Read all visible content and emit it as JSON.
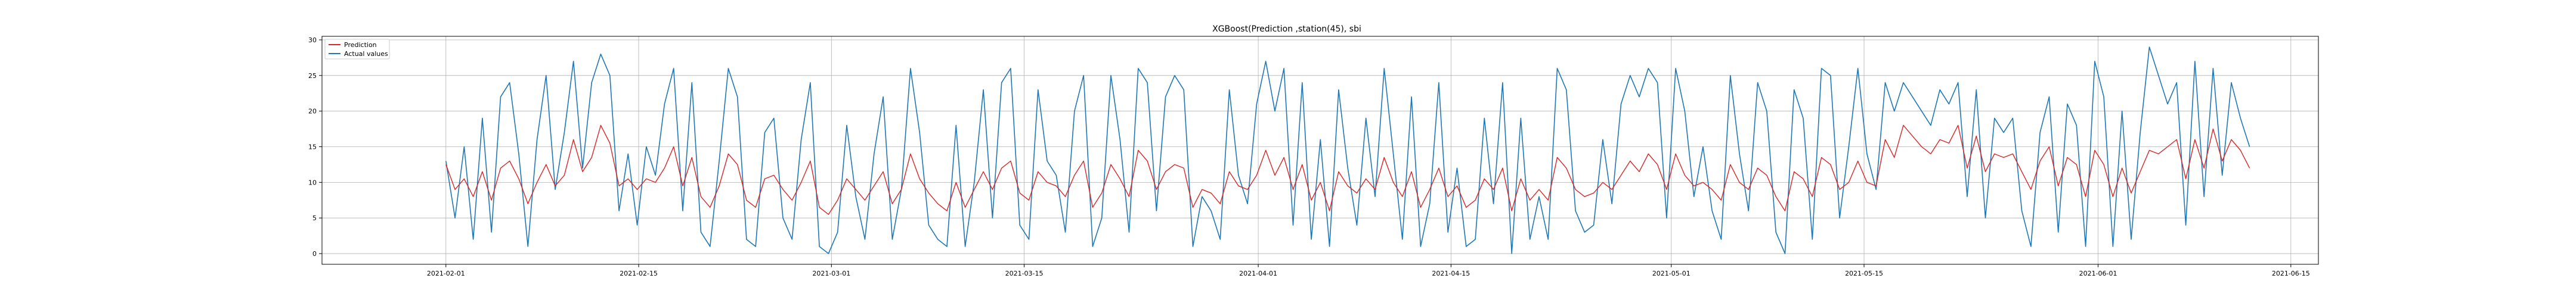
{
  "chart_data": {
    "type": "line",
    "title": "XGBoost(Prediction ,station(45), sbi",
    "xlabel": "",
    "ylabel": "",
    "x_start": "2021-02-01",
    "x_end": "2021-06-12",
    "xlim": [
      "2021-01-23",
      "2021-06-17"
    ],
    "ylim": [
      -1.5,
      30.5
    ],
    "x_ticks": [
      "2021-02-01",
      "2021-02-15",
      "2021-03-01",
      "2021-03-15",
      "2021-04-01",
      "2021-04-15",
      "2021-05-01",
      "2021-05-15",
      "2021-06-01",
      "2021-06-15"
    ],
    "y_ticks": [
      0,
      5,
      10,
      15,
      20,
      25,
      30
    ],
    "grid": true,
    "legend_placement": "top-left",
    "colors": {
      "Prediction": "#d62728",
      "Actual values": "#1f77b4"
    },
    "series": [
      {
        "name": "Prediction",
        "values": [
          12.5,
          9.0,
          10.5,
          8.0,
          11.5,
          7.5,
          12.0,
          13.0,
          10.5,
          7.0,
          10.0,
          12.5,
          9.5,
          11.0,
          16.0,
          11.5,
          13.5,
          18.0,
          15.5,
          9.5,
          10.5,
          9.0,
          10.5,
          10.0,
          12.0,
          15.0,
          9.5,
          13.5,
          8.0,
          6.5,
          9.5,
          14.0,
          12.5,
          7.5,
          6.5,
          10.5,
          11.0,
          9.0,
          7.5,
          10.0,
          13.0,
          6.5,
          5.5,
          7.5,
          10.5,
          9.0,
          7.5,
          9.5,
          11.5,
          7.0,
          9.0,
          14.0,
          10.5,
          8.5,
          7.0,
          6.0,
          10.0,
          6.5,
          9.0,
          11.5,
          9.0,
          12.0,
          13.0,
          8.5,
          7.5,
          11.5,
          10.0,
          9.5,
          8.0,
          11.0,
          13.0,
          6.5,
          8.5,
          12.5,
          10.5,
          8.0,
          14.5,
          13.0,
          9.0,
          11.5,
          12.5,
          12.0,
          6.5,
          9.0,
          8.5,
          7.0,
          11.5,
          9.5,
          9.0,
          11.0,
          14.5,
          11.0,
          13.5,
          9.0,
          12.5,
          7.5,
          10.0,
          6.0,
          11.5,
          9.5,
          8.5,
          10.5,
          9.0,
          13.5,
          10.0,
          8.0,
          11.5,
          6.5,
          9.0,
          12.0,
          8.0,
          9.5,
          6.5,
          7.5,
          10.5,
          9.0,
          12.0,
          6.0,
          10.5,
          7.5,
          9.0,
          7.5,
          13.5,
          12.0,
          9.0,
          8.0,
          8.5,
          10.0,
          9.0,
          11.0,
          13.0,
          11.5,
          14.0,
          12.5,
          9.0,
          14.0,
          11.0,
          9.5,
          10.0,
          9.0,
          7.5,
          12.5,
          10.0,
          9.0,
          12.0,
          11.0,
          8.0,
          6.0,
          11.5,
          10.5,
          8.0,
          13.5,
          12.5,
          9.0,
          10.0,
          13.0,
          10.0,
          9.5,
          16.0,
          13.5,
          18.0,
          16.5,
          15.0,
          14.0,
          16.0,
          15.5,
          18.0,
          12.0,
          16.5,
          11.5,
          14.0,
          13.5,
          14.0,
          11.5,
          9.0,
          13.0,
          15.0,
          9.5,
          13.5,
          12.5,
          8.0,
          14.5,
          12.5,
          8.0,
          12.0,
          8.5,
          11.5,
          14.5,
          14.0,
          15.0,
          16.0,
          10.5,
          16.0,
          12.0,
          17.5,
          13.0,
          16.0,
          14.5,
          12.0
        ]
      },
      {
        "name": "Actual values",
        "values": [
          13.0,
          5.0,
          15.0,
          2.0,
          19.0,
          3.0,
          22.0,
          24.0,
          14.0,
          1.0,
          16.0,
          25.0,
          9.0,
          17.0,
          27.0,
          12.0,
          24.0,
          28.0,
          25.0,
          6.0,
          14.0,
          4.0,
          15.0,
          11.0,
          21.0,
          26.0,
          6.0,
          24.0,
          3.0,
          1.0,
          13.0,
          26.0,
          22.0,
          2.0,
          1.0,
          17.0,
          19.0,
          5.0,
          2.0,
          16.0,
          24.0,
          1.0,
          0.0,
          3.0,
          18.0,
          8.0,
          2.0,
          14.0,
          22.0,
          2.0,
          9.0,
          26.0,
          17.0,
          4.0,
          2.0,
          1.0,
          18.0,
          1.0,
          10.0,
          23.0,
          5.0,
          24.0,
          26.0,
          4.0,
          2.0,
          23.0,
          13.0,
          11.0,
          3.0,
          20.0,
          25.0,
          1.0,
          5.0,
          25.0,
          16.0,
          3.0,
          26.0,
          24.0,
          6.0,
          22.0,
          25.0,
          23.0,
          1.0,
          8.0,
          6.0,
          2.0,
          23.0,
          11.0,
          7.0,
          21.0,
          27.0,
          20.0,
          26.0,
          4.0,
          24.0,
          2.0,
          16.0,
          1.0,
          23.0,
          12.0,
          4.0,
          19.0,
          8.0,
          26.0,
          14.0,
          2.0,
          22.0,
          1.0,
          7.0,
          24.0,
          3.0,
          12.0,
          1.0,
          2.0,
          19.0,
          7.0,
          24.0,
          0.0,
          19.0,
          2.0,
          8.0,
          2.0,
          26.0,
          23.0,
          6.0,
          3.0,
          4.0,
          16.0,
          7.0,
          21.0,
          25.0,
          22.0,
          26.0,
          24.0,
          5.0,
          26.0,
          20.0,
          8.0,
          15.0,
          6.0,
          2.0,
          25.0,
          14.0,
          6.0,
          24.0,
          20.0,
          3.0,
          0.0,
          23.0,
          19.0,
          2.0,
          26.0,
          25.0,
          5.0,
          15.0,
          26.0,
          14.0,
          9.0,
          24.0,
          20.0,
          24.0,
          22.0,
          20.0,
          18.0,
          23.0,
          21.0,
          24.0,
          8.0,
          23.0,
          5.0,
          19.0,
          17.0,
          19.0,
          6.0,
          1.0,
          17.0,
          22.0,
          3.0,
          21.0,
          18.0,
          1.0,
          27.0,
          22.0,
          1.0,
          20.0,
          2.0,
          17.0,
          29.0,
          25.0,
          21.0,
          24.0,
          4.0,
          27.0,
          8.0,
          26.0,
          11.0,
          24.0,
          19.0,
          15.0
        ]
      }
    ]
  }
}
